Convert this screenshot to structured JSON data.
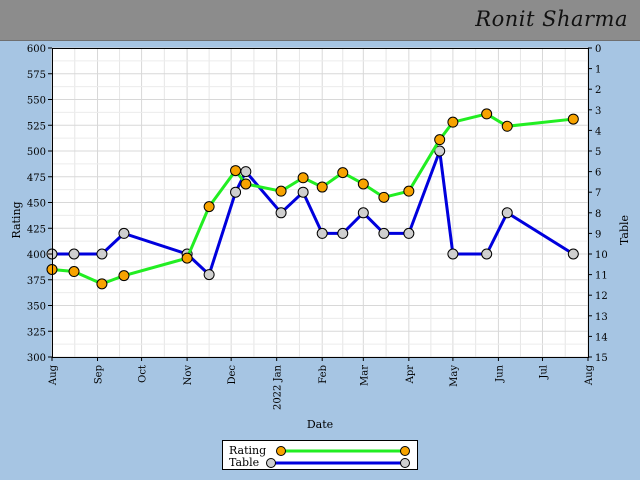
{
  "header": {
    "owner_name": "Ronit Sharma"
  },
  "colors": {
    "rating_line": "#22ee22",
    "table_line": "#0000dd",
    "rating_marker": "#f7a300",
    "table_marker": "#cfcfcf",
    "plot_bg": "#ffffff",
    "frame_bg": "#a6c5e3"
  },
  "chart_data": {
    "type": "line",
    "xlabel": "Date",
    "ylabel_left": "Rating",
    "ylabel_right": "Table",
    "x_tick_labels": [
      "Aug",
      "Sep",
      "Oct",
      "Nov",
      "Dec",
      "2022 Jan",
      "Feb",
      "Mar",
      "Apr",
      "May",
      "Jun",
      "Jul",
      "Aug"
    ],
    "x_range": [
      "2021-08-01",
      "2022-08-01"
    ],
    "y_left_range": [
      300,
      600
    ],
    "y_left_ticks": [
      300,
      325,
      350,
      375,
      400,
      425,
      450,
      475,
      500,
      525,
      550,
      575,
      600
    ],
    "y_right_range": [
      0,
      15
    ],
    "y_right_inverted": true,
    "y_right_ticks": [
      0,
      1,
      2,
      3,
      4,
      5,
      6,
      7,
      8,
      9,
      10,
      11,
      12,
      13,
      14,
      15
    ],
    "grid": true,
    "legend_position": "bottom-center",
    "series": [
      {
        "name": "Rating",
        "axis": "left",
        "points": [
          {
            "x": "2021-08-01",
            "y": 385
          },
          {
            "x": "2021-08-16",
            "y": 383
          },
          {
            "x": "2021-09-04",
            "y": 371
          },
          {
            "x": "2021-09-19",
            "y": 379
          },
          {
            "x": "2021-11-01",
            "y": 396
          },
          {
            "x": "2021-11-16",
            "y": 446
          },
          {
            "x": "2021-12-04",
            "y": 481
          },
          {
            "x": "2021-12-11",
            "y": 468
          },
          {
            "x": "2022-01-04",
            "y": 461
          },
          {
            "x": "2022-01-19",
            "y": 474
          },
          {
            "x": "2022-02-01",
            "y": 465
          },
          {
            "x": "2022-02-15",
            "y": 479
          },
          {
            "x": "2022-03-01",
            "y": 468
          },
          {
            "x": "2022-03-15",
            "y": 455
          },
          {
            "x": "2022-04-01",
            "y": 461
          },
          {
            "x": "2022-04-22",
            "y": 511
          },
          {
            "x": "2022-05-01",
            "y": 528
          },
          {
            "x": "2022-05-24",
            "y": 536
          },
          {
            "x": "2022-06-07",
            "y": 524
          },
          {
            "x": "2022-07-22",
            "y": 531
          }
        ]
      },
      {
        "name": "Table",
        "axis": "right",
        "points": [
          {
            "x": "2021-08-01",
            "y": 10
          },
          {
            "x": "2021-08-16",
            "y": 10
          },
          {
            "x": "2021-09-04",
            "y": 10
          },
          {
            "x": "2021-09-19",
            "y": 9
          },
          {
            "x": "2021-11-01",
            "y": 10
          },
          {
            "x": "2021-11-16",
            "y": 11
          },
          {
            "x": "2021-12-04",
            "y": 7
          },
          {
            "x": "2021-12-11",
            "y": 6
          },
          {
            "x": "2022-01-04",
            "y": 8
          },
          {
            "x": "2022-01-19",
            "y": 7
          },
          {
            "x": "2022-02-01",
            "y": 9
          },
          {
            "x": "2022-02-15",
            "y": 9
          },
          {
            "x": "2022-03-01",
            "y": 8
          },
          {
            "x": "2022-03-15",
            "y": 9
          },
          {
            "x": "2022-04-01",
            "y": 9
          },
          {
            "x": "2022-04-22",
            "y": 5
          },
          {
            "x": "2022-05-01",
            "y": 10
          },
          {
            "x": "2022-05-24",
            "y": 10
          },
          {
            "x": "2022-06-07",
            "y": 8
          },
          {
            "x": "2022-07-22",
            "y": 10
          }
        ]
      }
    ]
  }
}
